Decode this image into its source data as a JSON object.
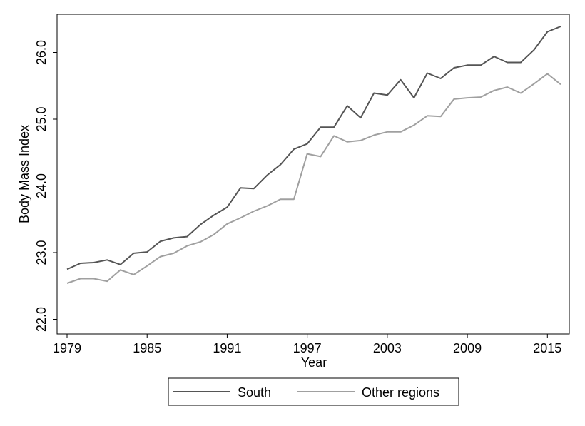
{
  "chart_data": {
    "type": "line",
    "title": "",
    "xlabel": "Year",
    "ylabel": "Body Mass Index",
    "xlim": [
      1979,
      2016
    ],
    "ylim": [
      22.0,
      26.4
    ],
    "xticks": [
      1979,
      1985,
      1991,
      1997,
      2003,
      2009,
      2015
    ],
    "yticks": [
      22.0,
      23.0,
      24.0,
      25.0,
      26.0
    ],
    "ytick_labels": [
      "22.0",
      "23.0",
      "24.0",
      "25.0",
      "26.0"
    ],
    "legend_position": "bottom",
    "x": [
      1979,
      1980,
      1981,
      1982,
      1983,
      1984,
      1985,
      1986,
      1987,
      1988,
      1989,
      1990,
      1991,
      1992,
      1993,
      1994,
      1995,
      1996,
      1997,
      1998,
      1999,
      2000,
      2001,
      2002,
      2003,
      2004,
      2005,
      2006,
      2007,
      2008,
      2009,
      2010,
      2011,
      2012,
      2013,
      2014,
      2015,
      2016
    ],
    "series": [
      {
        "name": "South",
        "color": "#555555",
        "values": [
          22.75,
          22.84,
          22.85,
          22.89,
          22.82,
          22.99,
          23.01,
          23.17,
          23.22,
          23.24,
          23.42,
          23.56,
          23.68,
          23.97,
          23.96,
          24.16,
          24.32,
          24.55,
          24.63,
          24.88,
          24.88,
          25.2,
          25.02,
          25.39,
          25.36,
          25.59,
          25.32,
          25.69,
          25.61,
          25.77,
          25.81,
          25.81,
          25.94,
          25.85,
          25.85,
          26.04,
          26.31,
          26.39
        ]
      },
      {
        "name": "Other regions",
        "color": "#a0a0a0",
        "values": [
          22.54,
          22.61,
          22.61,
          22.57,
          22.74,
          22.67,
          22.8,
          22.94,
          22.99,
          23.1,
          23.16,
          23.27,
          23.43,
          23.52,
          23.62,
          23.7,
          23.8,
          23.8,
          24.48,
          24.44,
          24.75,
          24.66,
          24.68,
          24.76,
          24.81,
          24.81,
          24.91,
          25.05,
          25.04,
          25.3,
          25.32,
          25.33,
          25.43,
          25.48,
          25.39,
          25.53,
          25.68,
          25.52
        ]
      }
    ]
  }
}
